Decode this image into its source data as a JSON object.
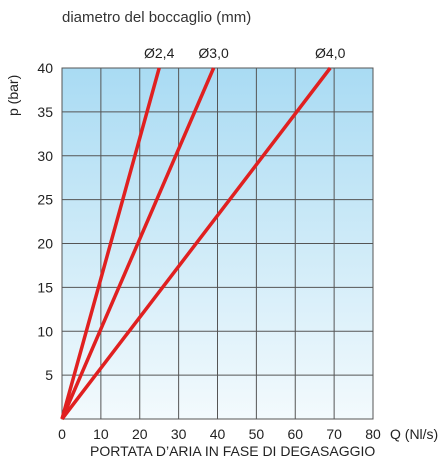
{
  "chart_data": {
    "type": "line",
    "title": "diametro del boccaglio (mm)",
    "xlabel": "Q (Nl/s)",
    "xlabel_caption": "PORTATA D’ARIA IN FASE DI DEGASAGGIO",
    "ylabel": "p (bar)",
    "xlim": [
      0,
      80
    ],
    "ylim": [
      0,
      40
    ],
    "x_ticks": [
      "0",
      "10",
      "20",
      "30",
      "40",
      "50",
      "60",
      "70",
      "80"
    ],
    "y_ticks": [
      "5",
      "10",
      "15",
      "20",
      "25",
      "30",
      "35",
      "40"
    ],
    "grid": true,
    "colors": {
      "line": "#e02020",
      "grid": "#555555",
      "bg_top": "#a9dbf3",
      "bg_bottom": "#f3fafd"
    },
    "series": [
      {
        "name": "Ø2,4",
        "x": [
          0,
          25
        ],
        "y": [
          0,
          40
        ]
      },
      {
        "name": "Ø3,0",
        "x": [
          0,
          39
        ],
        "y": [
          0,
          40
        ]
      },
      {
        "name": "Ø4,0",
        "x": [
          0,
          69
        ],
        "y": [
          0,
          40
        ]
      }
    ]
  }
}
